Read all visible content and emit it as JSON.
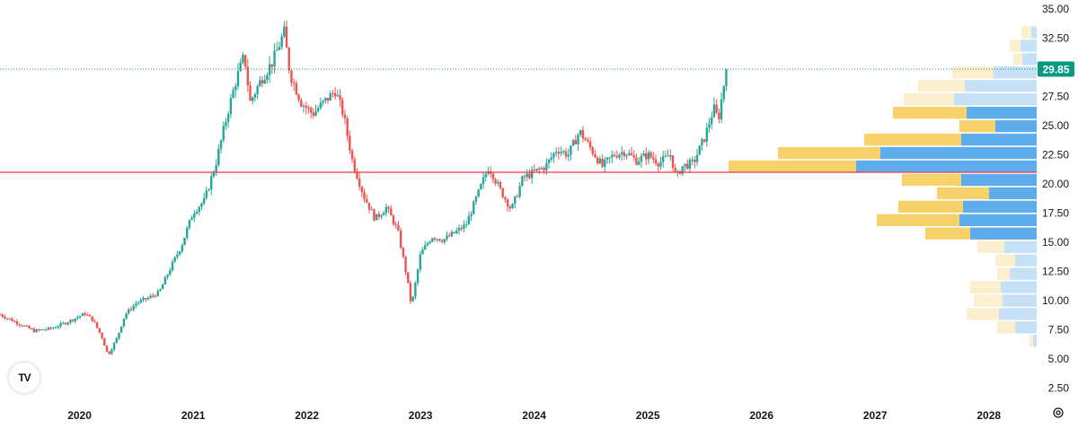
{
  "chart_data": {
    "type": "candlestick",
    "title": "",
    "ylim": [
      1.5,
      35
    ],
    "xlim": [
      2019.3,
      2028.35
    ],
    "y_ticks": [
      "35.00",
      "32.50",
      "27.50",
      "25.00",
      "22.50",
      "20.00",
      "17.50",
      "15.00",
      "12.50",
      "10.00",
      "7.50",
      "5.00",
      "2.50"
    ],
    "x_ticks": [
      "2020",
      "2021",
      "2022",
      "2023",
      "2024",
      "2025",
      "2026",
      "2027",
      "2028"
    ],
    "last_price": 29.85,
    "last_price_label": "29.85",
    "horizontal_line": 21.0,
    "colors": {
      "up": "#26a69a",
      "down": "#ef5350",
      "last_price": "#089981",
      "hline": "#f23645",
      "vp_up": "#5eacec",
      "vp_down": "#f7d26a",
      "vp_up_light": "#c6e1f6",
      "vp_down_light": "#fcefcd",
      "grid_text": "#131722"
    },
    "price_path": [
      [
        2019.3,
        8.8
      ],
      [
        2019.45,
        8.1
      ],
      [
        2019.6,
        7.4
      ],
      [
        2019.75,
        7.6
      ],
      [
        2019.9,
        8.2
      ],
      [
        2020.05,
        8.9
      ],
      [
        2020.12,
        8.3
      ],
      [
        2020.2,
        6.8
      ],
      [
        2020.25,
        5.3
      ],
      [
        2020.33,
        6.8
      ],
      [
        2020.4,
        8.8
      ],
      [
        2020.5,
        9.8
      ],
      [
        2020.6,
        10.2
      ],
      [
        2020.7,
        10.7
      ],
      [
        2020.8,
        12.8
      ],
      [
        2020.9,
        14.8
      ],
      [
        2021.0,
        17.6
      ],
      [
        2021.1,
        18.6
      ],
      [
        2021.2,
        21.8
      ],
      [
        2021.3,
        26.0
      ],
      [
        2021.38,
        29.0
      ],
      [
        2021.45,
        31.0
      ],
      [
        2021.5,
        27.0
      ],
      [
        2021.6,
        29.0
      ],
      [
        2021.7,
        30.5
      ],
      [
        2021.8,
        33.0
      ],
      [
        2021.85,
        29.5
      ],
      [
        2021.95,
        27.0
      ],
      [
        2022.05,
        26.0
      ],
      [
        2022.15,
        27.0
      ],
      [
        2022.25,
        28.0
      ],
      [
        2022.32,
        26.0
      ],
      [
        2022.4,
        22.0
      ],
      [
        2022.5,
        19.0
      ],
      [
        2022.6,
        17.0
      ],
      [
        2022.7,
        18.0
      ],
      [
        2022.8,
        16.0
      ],
      [
        2022.88,
        12.0
      ],
      [
        2022.92,
        9.5
      ],
      [
        2023.0,
        14.0
      ],
      [
        2023.1,
        15.5
      ],
      [
        2023.2,
        15.2
      ],
      [
        2023.3,
        15.8
      ],
      [
        2023.4,
        16.5
      ],
      [
        2023.5,
        19.0
      ],
      [
        2023.6,
        21.5
      ],
      [
        2023.7,
        19.5
      ],
      [
        2023.8,
        17.8
      ],
      [
        2023.9,
        20.5
      ],
      [
        2024.0,
        21.0
      ],
      [
        2024.1,
        21.5
      ],
      [
        2024.2,
        23.0
      ],
      [
        2024.3,
        22.5
      ],
      [
        2024.4,
        24.5
      ],
      [
        2024.5,
        23.0
      ],
      [
        2024.6,
        21.5
      ],
      [
        2024.7,
        22.5
      ],
      [
        2024.8,
        22.8
      ],
      [
        2024.9,
        22.0
      ],
      [
        2025.0,
        22.5
      ],
      [
        2025.1,
        21.8
      ],
      [
        2025.2,
        22.5
      ],
      [
        2025.25,
        20.5
      ],
      [
        2025.3,
        21.5
      ],
      [
        2025.4,
        21.8
      ],
      [
        2025.5,
        24.0
      ],
      [
        2025.58,
        26.5
      ],
      [
        2025.62,
        25.5
      ],
      [
        2025.66,
        28.0
      ],
      [
        2025.69,
        29.85
      ]
    ],
    "volume_profile": [
      {
        "y": 33.0,
        "up": 6,
        "down": 11,
        "light": true
      },
      {
        "y": 31.85,
        "up": 18,
        "down": 12,
        "light": true
      },
      {
        "y": 30.7,
        "up": 16,
        "down": 10,
        "light": true
      },
      {
        "y": 29.55,
        "up": 48,
        "down": 46,
        "light": true
      },
      {
        "y": 28.4,
        "up": 80,
        "down": 52,
        "light": true
      },
      {
        "y": 27.25,
        "up": 92,
        "down": 56,
        "light": true
      },
      {
        "y": 26.1,
        "up": 78,
        "down": 82,
        "light": false
      },
      {
        "y": 24.95,
        "up": 46,
        "down": 40,
        "light": false
      },
      {
        "y": 23.8,
        "up": 84,
        "down": 108,
        "light": false
      },
      {
        "y": 22.65,
        "up": 174,
        "down": 114,
        "light": false
      },
      {
        "y": 21.5,
        "up": 201,
        "down": 142,
        "light": false
      },
      {
        "y": 20.35,
        "up": 84,
        "down": 66,
        "light": false
      },
      {
        "y": 19.2,
        "up": 53,
        "down": 58,
        "light": false
      },
      {
        "y": 18.05,
        "up": 82,
        "down": 72,
        "light": false
      },
      {
        "y": 16.9,
        "up": 86,
        "down": 92,
        "light": false
      },
      {
        "y": 15.75,
        "up": 74,
        "down": 50,
        "light": false
      },
      {
        "y": 14.6,
        "up": 36,
        "down": 30,
        "light": true
      },
      {
        "y": 13.45,
        "up": 24,
        "down": 22,
        "light": true
      },
      {
        "y": 12.3,
        "up": 30,
        "down": 14,
        "light": true
      },
      {
        "y": 11.15,
        "up": 40,
        "down": 34,
        "light": true
      },
      {
        "y": 10.0,
        "up": 38,
        "down": 32,
        "light": true
      },
      {
        "y": 8.85,
        "up": 42,
        "down": 36,
        "light": true
      },
      {
        "y": 7.7,
        "up": 24,
        "down": 20,
        "light": true
      },
      {
        "y": 6.55,
        "up": 4,
        "down": 4,
        "light": true
      }
    ]
  },
  "logo": {
    "text": "TV"
  }
}
